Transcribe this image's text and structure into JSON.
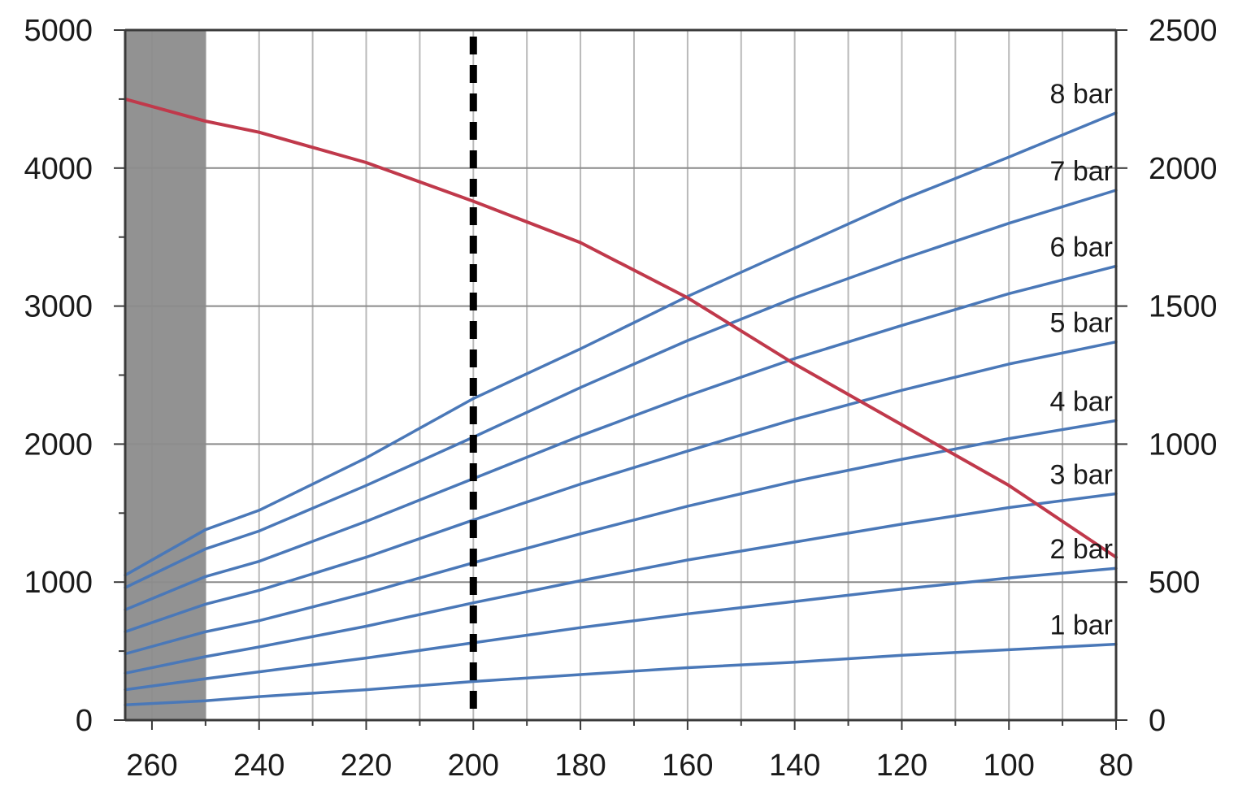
{
  "chart_data": {
    "type": "line",
    "x_axis": {
      "ticks": [
        260,
        240,
        220,
        200,
        180,
        160,
        140,
        120,
        100,
        80
      ],
      "tick_labels": [
        "260",
        "240",
        "220",
        "200",
        "180",
        "160",
        "140",
        "120",
        "100",
        "80"
      ],
      "range": [
        265,
        80
      ],
      "reversed": true,
      "minor_step": 10
    },
    "y_axis_left": {
      "ticks": [
        0,
        1000,
        2000,
        3000,
        4000,
        5000
      ],
      "tick_labels": [
        "0",
        "1000",
        "2000",
        "3000",
        "4000",
        "5000"
      ],
      "range": [
        0,
        5000
      ]
    },
    "y_axis_right": {
      "ticks": [
        0,
        500,
        1000,
        1500,
        2000,
        2500
      ],
      "tick_labels": [
        "0",
        "500",
        "1000",
        "1500",
        "2000",
        "2500"
      ],
      "range": [
        0,
        2500
      ]
    },
    "grid": true,
    "shaded_region": {
      "x_from": 265,
      "x_to": 250,
      "color": "#8c8c8c"
    },
    "reference_line": {
      "x": 200,
      "style": "dashed",
      "color": "#000000"
    },
    "x": [
      265,
      250,
      240,
      220,
      200,
      180,
      160,
      140,
      120,
      100,
      80
    ],
    "series": [
      {
        "name": "1 bar",
        "axis": "left",
        "color": "#4a78b8",
        "values": [
          110,
          140,
          170,
          220,
          280,
          330,
          380,
          420,
          470,
          510,
          550
        ]
      },
      {
        "name": "2 bar",
        "axis": "left",
        "color": "#4a78b8",
        "values": [
          220,
          300,
          350,
          450,
          560,
          670,
          770,
          860,
          950,
          1030,
          1100
        ]
      },
      {
        "name": "3 bar",
        "axis": "left",
        "color": "#4a78b8",
        "values": [
          340,
          460,
          530,
          680,
          850,
          1010,
          1160,
          1290,
          1420,
          1540,
          1640
        ]
      },
      {
        "name": "4 bar",
        "axis": "left",
        "color": "#4a78b8",
        "values": [
          480,
          640,
          720,
          920,
          1140,
          1350,
          1550,
          1730,
          1890,
          2040,
          2170
        ]
      },
      {
        "name": "5 bar",
        "axis": "left",
        "color": "#4a78b8",
        "values": [
          640,
          840,
          940,
          1180,
          1450,
          1710,
          1950,
          2180,
          2390,
          2580,
          2740
        ]
      },
      {
        "name": "6 bar",
        "axis": "left",
        "color": "#4a78b8",
        "values": [
          800,
          1040,
          1150,
          1440,
          1750,
          2060,
          2350,
          2620,
          2860,
          3090,
          3290
        ]
      },
      {
        "name": "7 bar",
        "axis": "left",
        "color": "#4a78b8",
        "values": [
          960,
          1240,
          1370,
          1700,
          2050,
          2410,
          2750,
          3060,
          3340,
          3600,
          3840
        ]
      },
      {
        "name": "8 bar",
        "axis": "left",
        "color": "#4a78b8",
        "values": [
          1050,
          1380,
          1520,
          1900,
          2330,
          2690,
          3070,
          3420,
          3770,
          4080,
          4400
        ]
      },
      {
        "axis": "right",
        "color": "#c0394b",
        "values": [
          2250,
          2170,
          2130,
          2020,
          1880,
          1730,
          1530,
          1290,
          1070,
          850,
          590
        ]
      }
    ]
  }
}
